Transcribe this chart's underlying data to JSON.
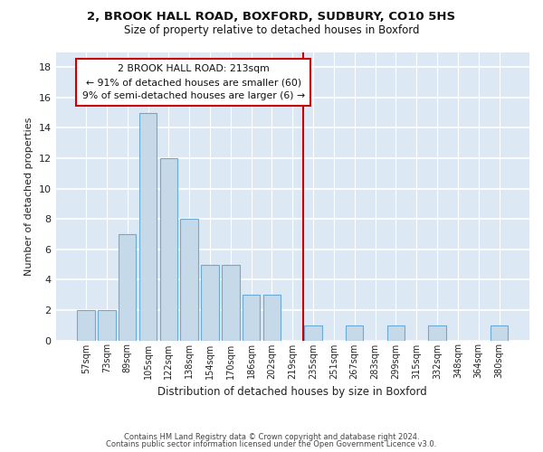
{
  "title": "2, BROOK HALL ROAD, BOXFORD, SUDBURY, CO10 5HS",
  "subtitle": "Size of property relative to detached houses in Boxford",
  "xlabel": "Distribution of detached houses by size in Boxford",
  "ylabel": "Number of detached properties",
  "bar_labels": [
    "57sqm",
    "73sqm",
    "89sqm",
    "105sqm",
    "122sqm",
    "138sqm",
    "154sqm",
    "170sqm",
    "186sqm",
    "202sqm",
    "219sqm",
    "235sqm",
    "251sqm",
    "267sqm",
    "283sqm",
    "299sqm",
    "315sqm",
    "332sqm",
    "348sqm",
    "364sqm",
    "380sqm"
  ],
  "bar_values": [
    2,
    2,
    7,
    15,
    12,
    8,
    5,
    5,
    3,
    3,
    0,
    1,
    0,
    1,
    0,
    1,
    0,
    1,
    0,
    0,
    1
  ],
  "bar_color": "#c6d9e8",
  "bar_edge_color": "#6aaad4",
  "reference_line_color": "#cc0000",
  "ylim": [
    0,
    19
  ],
  "yticks": [
    0,
    2,
    4,
    6,
    8,
    10,
    12,
    14,
    16,
    18
  ],
  "annotation_title": "2 BROOK HALL ROAD: 213sqm",
  "annotation_line1": "← 91% of detached houses are smaller (60)",
  "annotation_line2": "9% of semi-detached houses are larger (6) →",
  "annotation_box_edge_color": "#cc0000",
  "footer1": "Contains HM Land Registry data © Crown copyright and database right 2024.",
  "footer2": "Contains public sector information licensed under the Open Government Licence v3.0.",
  "fig_bg_color": "#ffffff",
  "plot_bg_color": "#dce9f5"
}
